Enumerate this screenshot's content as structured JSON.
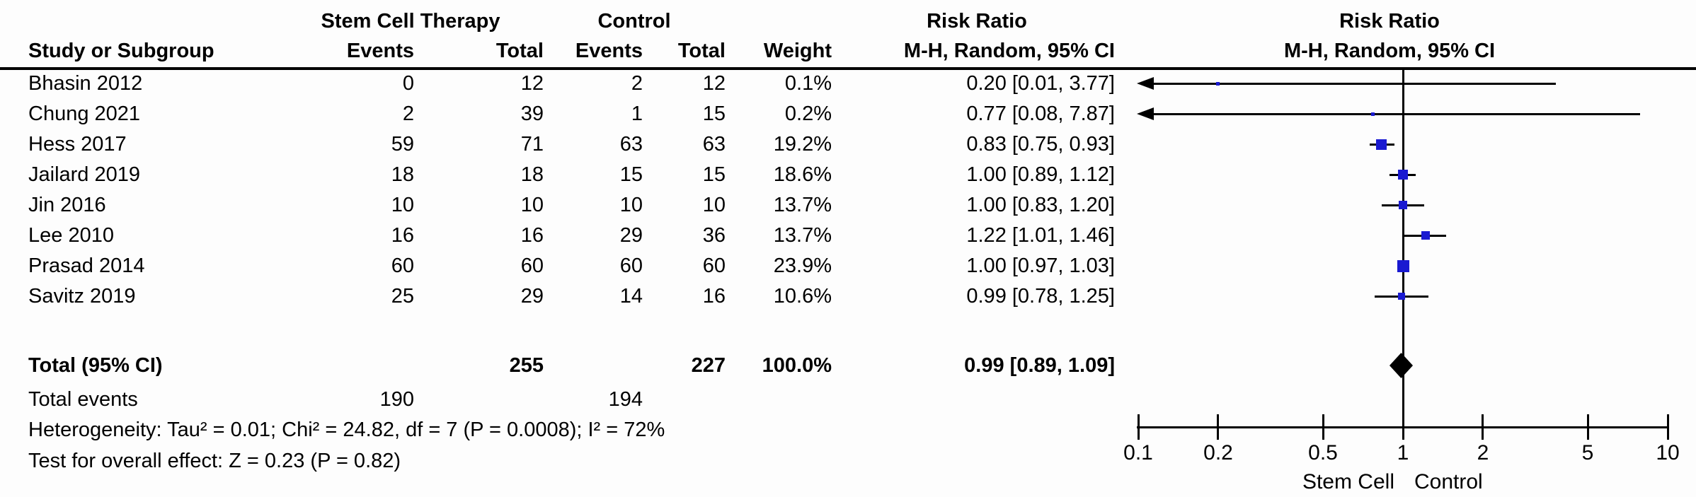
{
  "header": {
    "group1": "Stem Cell Therapy",
    "group2": "Control",
    "col_study": "Study or Subgroup",
    "col_events": "Events",
    "col_total": "Total",
    "col_events2": "Events",
    "col_total2": "Total",
    "col_weight": "Weight",
    "col_rr_title": "Risk Ratio",
    "col_rr_method": "M-H, Random, 95% CI",
    "plot_rr_title": "Risk Ratio",
    "plot_rr_method": "M-H, Random, 95% CI"
  },
  "chart_data": {
    "type": "scatter",
    "subtype": "forest-plot",
    "x_scale": "log10",
    "xlim": [
      0.1,
      10
    ],
    "axis_ticks": [
      "0.1",
      "0.2",
      "0.5",
      "1",
      "2",
      "5",
      "10"
    ],
    "xlabel_left": "Stem Cell",
    "xlabel_right": "Control",
    "marker_color": "#1a1ad1",
    "studies": [
      {
        "name": "Bhasin 2012",
        "sc_events": "0",
        "sc_total": "12",
        "c_events": "2",
        "c_total": "12",
        "weight": "0.1%",
        "rr": 0.2,
        "ci_low": 0.01,
        "ci_high": 3.77,
        "rr_label": "0.20 [0.01, 3.77]"
      },
      {
        "name": "Chung 2021",
        "sc_events": "2",
        "sc_total": "39",
        "c_events": "1",
        "c_total": "15",
        "weight": "0.2%",
        "rr": 0.77,
        "ci_low": 0.08,
        "ci_high": 7.87,
        "rr_label": "0.77 [0.08, 7.87]"
      },
      {
        "name": "Hess 2017",
        "sc_events": "59",
        "sc_total": "71",
        "c_events": "63",
        "c_total": "63",
        "weight": "19.2%",
        "rr": 0.83,
        "ci_low": 0.75,
        "ci_high": 0.93,
        "rr_label": "0.83 [0.75, 0.93]"
      },
      {
        "name": "Jailard 2019",
        "sc_events": "18",
        "sc_total": "18",
        "c_events": "15",
        "c_total": "15",
        "weight": "18.6%",
        "rr": 1.0,
        "ci_low": 0.89,
        "ci_high": 1.12,
        "rr_label": "1.00 [0.89, 1.12]"
      },
      {
        "name": "Jin 2016",
        "sc_events": "10",
        "sc_total": "10",
        "c_events": "10",
        "c_total": "10",
        "weight": "13.7%",
        "rr": 1.0,
        "ci_low": 0.83,
        "ci_high": 1.2,
        "rr_label": "1.00 [0.83, 1.20]"
      },
      {
        "name": "Lee 2010",
        "sc_events": "16",
        "sc_total": "16",
        "c_events": "29",
        "c_total": "36",
        "weight": "13.7%",
        "rr": 1.22,
        "ci_low": 1.01,
        "ci_high": 1.46,
        "rr_label": "1.22 [1.01, 1.46]"
      },
      {
        "name": "Prasad 2014",
        "sc_events": "60",
        "sc_total": "60",
        "c_events": "60",
        "c_total": "60",
        "weight": "23.9%",
        "rr": 1.0,
        "ci_low": 0.97,
        "ci_high": 1.03,
        "rr_label": "1.00 [0.97, 1.03]"
      },
      {
        "name": "Savitz 2019",
        "sc_events": "25",
        "sc_total": "29",
        "c_events": "14",
        "c_total": "16",
        "weight": "10.6%",
        "rr": 0.99,
        "ci_low": 0.78,
        "ci_high": 1.25,
        "rr_label": "0.99 [0.78, 1.25]"
      }
    ],
    "total": {
      "label": "Total (95% CI)",
      "sc_total": "255",
      "c_total": "227",
      "weight": "100.0%",
      "rr": 0.99,
      "ci_low": 0.89,
      "ci_high": 1.09,
      "rr_label": "0.99 [0.89, 1.09]"
    },
    "total_events": {
      "label": "Total events",
      "sc": "190",
      "c": "194"
    }
  },
  "footer": {
    "heterogeneity": "Heterogeneity: Tau² = 0.01; Chi² = 24.82, df = 7 (P = 0.0008); I² = 72%",
    "overall_effect": "Test for overall effect: Z = 0.23 (P = 0.82)"
  }
}
